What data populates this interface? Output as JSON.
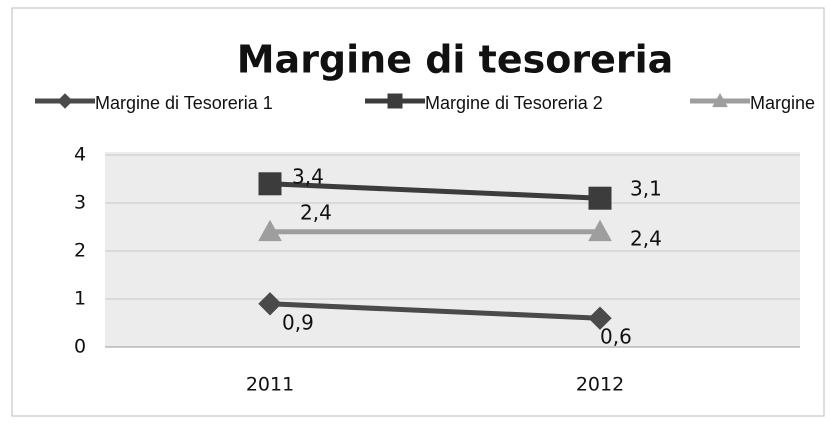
{
  "chart_data": {
    "type": "line",
    "title": "Margine di tesoreria",
    "categories": [
      "2011",
      "2012"
    ],
    "series": [
      {
        "name": "Margine di Tesoreria 1",
        "color": "#4a4a4a",
        "marker": "diamond",
        "values": [
          0.9,
          0.6
        ],
        "value_labels": [
          "0,9",
          "0,6"
        ]
      },
      {
        "name": "Margine di Tesoreria 2",
        "color": "#3c3c3c",
        "marker": "square",
        "values": [
          3.4,
          3.1
        ],
        "value_labels": [
          "3,4",
          "3,1"
        ]
      },
      {
        "name": "Margine",
        "color": "#9e9e9e",
        "marker": "triangle",
        "values": [
          2.4,
          2.4
        ],
        "value_labels": [
          "2,4",
          "2,4"
        ]
      }
    ],
    "ylim": [
      0,
      4
    ],
    "yticks": [
      0,
      1,
      2,
      3,
      4
    ],
    "grid": true,
    "legend": "top"
  }
}
